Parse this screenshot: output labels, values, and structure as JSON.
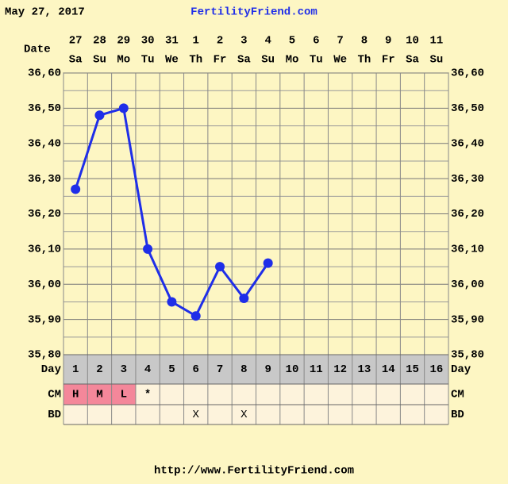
{
  "header": {
    "date": "May 27, 2017",
    "site": "FertilityFriend.com"
  },
  "chart_data": {
    "type": "line",
    "date_label": "Date",
    "categories": [
      "27",
      "28",
      "29",
      "30",
      "31",
      "1",
      "2",
      "3",
      "4",
      "5",
      "6",
      "7",
      "8",
      "9",
      "10",
      "11"
    ],
    "weekdays": [
      "Sa",
      "Su",
      "Mo",
      "Tu",
      "We",
      "Th",
      "Fr",
      "Sa",
      "Su",
      "Mo",
      "Tu",
      "We",
      "Th",
      "Fr",
      "Sa",
      "Su"
    ],
    "values": [
      36.27,
      36.48,
      36.5,
      36.1,
      35.95,
      35.91,
      36.05,
      35.96,
      36.06,
      null,
      null,
      null,
      null,
      null,
      null,
      null
    ],
    "color": "#1f2ee8",
    "ylim": [
      35.8,
      36.6
    ],
    "yticks": [
      {
        "value": 35.8,
        "label": "35,80"
      },
      {
        "value": 35.9,
        "label": "35,90"
      },
      {
        "value": 36.0,
        "label": "36,00"
      },
      {
        "value": 36.1,
        "label": "36,10"
      },
      {
        "value": 36.2,
        "label": "36,20"
      },
      {
        "value": 36.3,
        "label": "36,30"
      },
      {
        "value": 36.4,
        "label": "36,40"
      },
      {
        "value": 36.5,
        "label": "36,50"
      },
      {
        "value": 36.6,
        "label": "36,60"
      }
    ],
    "minor_yticks": [
      35.85,
      35.95,
      36.05,
      36.15,
      36.25,
      36.35,
      36.45,
      36.55
    ],
    "grid": true,
    "day_label": "Day",
    "days": [
      1,
      2,
      3,
      4,
      5,
      6,
      7,
      8,
      9,
      10,
      11,
      12,
      13,
      14,
      15,
      16
    ],
    "cm_label": "CM",
    "cm": [
      "H",
      "M",
      "L",
      "*",
      null,
      null,
      null,
      null,
      null,
      null,
      null,
      null,
      null,
      null,
      null,
      null
    ],
    "cm_colors": [
      "#f4879a",
      "#f4879a",
      "#f4879a",
      null,
      null,
      null,
      null,
      null,
      null,
      null,
      null,
      null,
      null,
      null,
      null,
      null
    ],
    "bd_label": "BD",
    "bd": [
      null,
      null,
      null,
      null,
      null,
      "X",
      null,
      "X",
      null,
      null,
      null,
      null,
      null,
      null,
      null,
      null
    ]
  },
  "footer": {
    "url": "http://www.FertilityFriend.com"
  }
}
